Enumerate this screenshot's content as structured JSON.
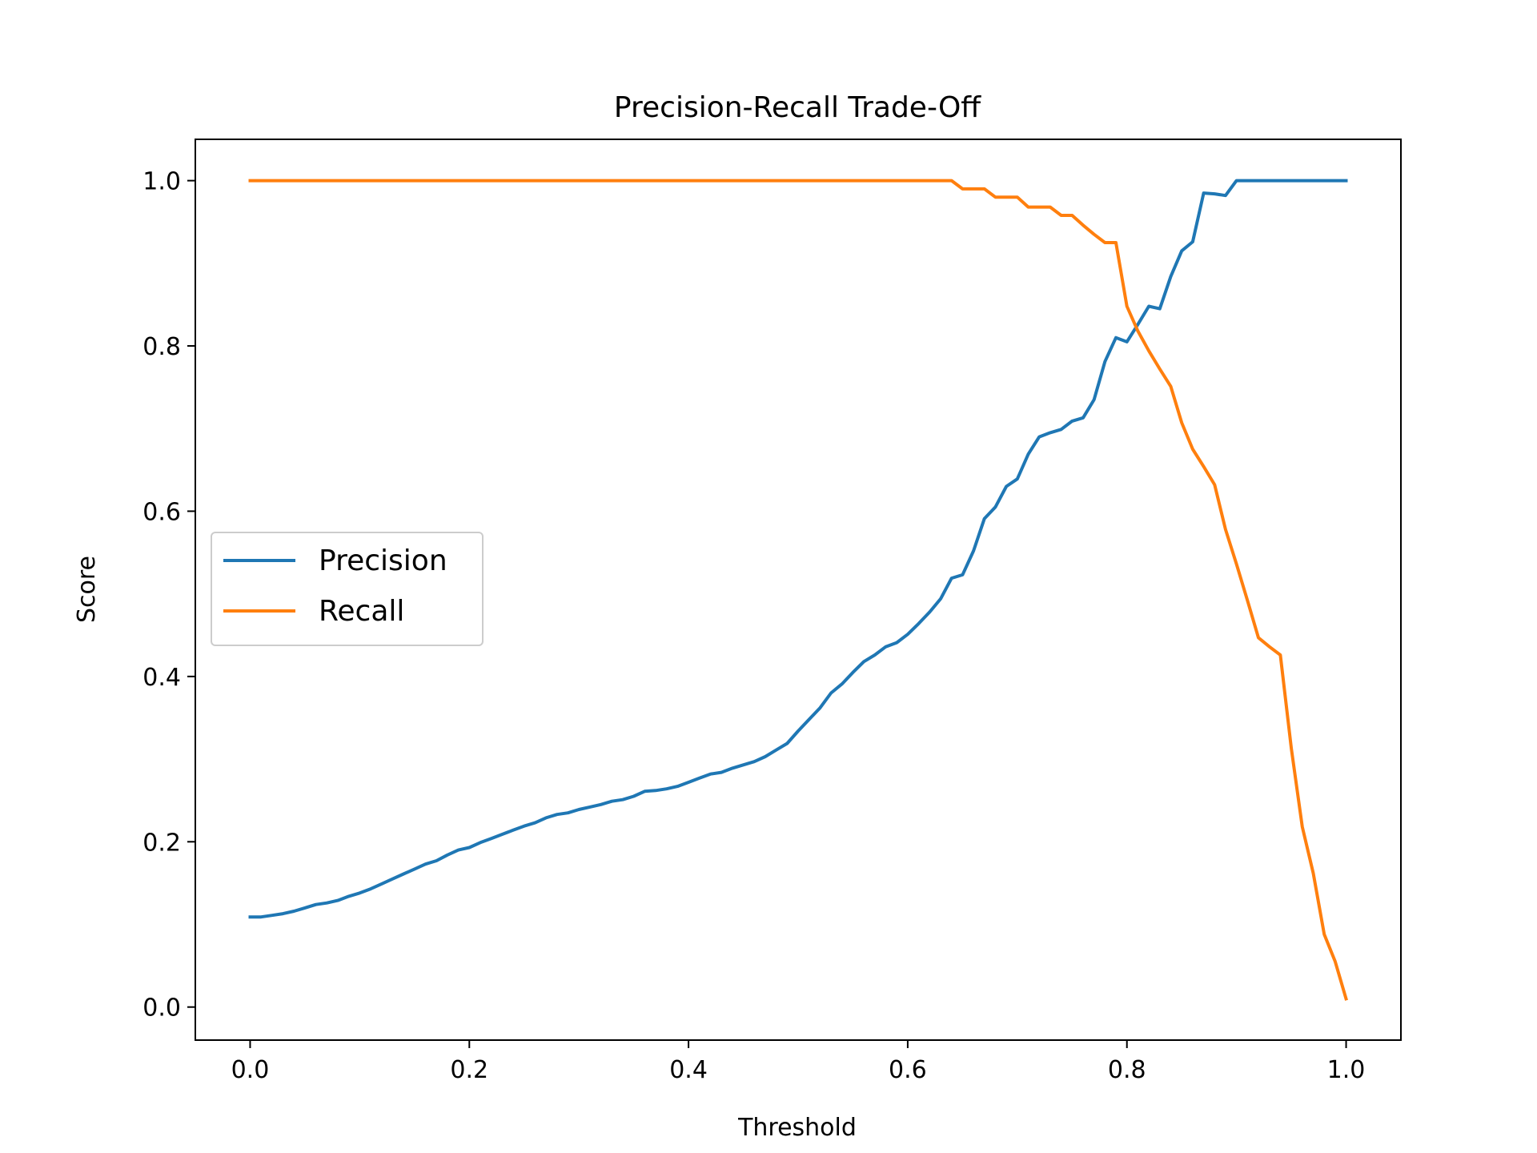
{
  "chart_data": {
    "type": "line",
    "title": "Precision-Recall Trade-Off",
    "xlabel": "Threshold",
    "ylabel": "Score",
    "xlim": [
      -0.05,
      1.05
    ],
    "ylim": [
      -0.04,
      1.05
    ],
    "xticks": [
      0.0,
      0.2,
      0.4,
      0.6,
      0.8,
      1.0
    ],
    "xtick_labels": [
      "0.0",
      "0.2",
      "0.4",
      "0.6",
      "0.8",
      "1.0"
    ],
    "yticks": [
      0.0,
      0.2,
      0.4,
      0.6,
      0.8,
      1.0
    ],
    "ytick_labels": [
      "0.0",
      "0.2",
      "0.4",
      "0.6",
      "0.8",
      "1.0"
    ],
    "grid": false,
    "legend_position": "center-left",
    "x": [
      0.0,
      0.01,
      0.02,
      0.03,
      0.04,
      0.05,
      0.06,
      0.07,
      0.08,
      0.09,
      0.1,
      0.11,
      0.12,
      0.13,
      0.14,
      0.15,
      0.16,
      0.17,
      0.18,
      0.19,
      0.2,
      0.21,
      0.22,
      0.23,
      0.24,
      0.25,
      0.26,
      0.27,
      0.28,
      0.29,
      0.3,
      0.31,
      0.32,
      0.33,
      0.34,
      0.35,
      0.36,
      0.37,
      0.38,
      0.39,
      0.4,
      0.41,
      0.42,
      0.43,
      0.44,
      0.45,
      0.46,
      0.47,
      0.48,
      0.49,
      0.5,
      0.51,
      0.52,
      0.53,
      0.54,
      0.55,
      0.56,
      0.57,
      0.58,
      0.59,
      0.6,
      0.61,
      0.62,
      0.63,
      0.64,
      0.65,
      0.66,
      0.67,
      0.68,
      0.69,
      0.7,
      0.71,
      0.72,
      0.73,
      0.74,
      0.75,
      0.76,
      0.77,
      0.78,
      0.79,
      0.8,
      0.81,
      0.82,
      0.83,
      0.84,
      0.85,
      0.86,
      0.87,
      0.88,
      0.89,
      0.9,
      0.91,
      0.92,
      0.93,
      0.94,
      0.95,
      0.96,
      0.97,
      0.98,
      0.99,
      1.0
    ],
    "series": [
      {
        "name": "Precision",
        "color": "#1f77b4",
        "values": [
          0.109,
          0.109,
          0.111,
          0.113,
          0.116,
          0.12,
          0.124,
          0.126,
          0.129,
          0.134,
          0.138,
          0.143,
          0.149,
          0.155,
          0.161,
          0.167,
          0.173,
          0.177,
          0.184,
          0.19,
          0.193,
          0.199,
          0.204,
          0.209,
          0.214,
          0.219,
          0.223,
          0.229,
          0.233,
          0.235,
          0.239,
          0.242,
          0.245,
          0.249,
          0.251,
          0.255,
          0.261,
          0.262,
          0.264,
          0.267,
          0.272,
          0.277,
          0.282,
          0.284,
          0.289,
          0.293,
          0.297,
          0.303,
          0.311,
          0.319,
          0.334,
          0.348,
          0.362,
          0.38,
          0.391,
          0.405,
          0.418,
          0.426,
          0.436,
          0.441,
          0.451,
          0.464,
          0.478,
          0.494,
          0.519,
          0.523,
          0.552,
          0.591,
          0.605,
          0.63,
          0.639,
          0.669,
          0.69,
          0.695,
          0.699,
          0.709,
          0.713,
          0.735,
          0.781,
          0.81,
          0.805,
          0.826,
          0.848,
          0.845,
          0.884,
          0.915,
          0.926,
          0.985,
          0.984,
          0.982,
          1.0,
          1.0,
          1.0,
          1.0,
          1.0,
          1.0,
          1.0,
          1.0,
          1.0,
          1.0,
          1.0
        ]
      },
      {
        "name": "Recall",
        "color": "#ff7f0e",
        "values": [
          1.0,
          1.0,
          1.0,
          1.0,
          1.0,
          1.0,
          1.0,
          1.0,
          1.0,
          1.0,
          1.0,
          1.0,
          1.0,
          1.0,
          1.0,
          1.0,
          1.0,
          1.0,
          1.0,
          1.0,
          1.0,
          1.0,
          1.0,
          1.0,
          1.0,
          1.0,
          1.0,
          1.0,
          1.0,
          1.0,
          1.0,
          1.0,
          1.0,
          1.0,
          1.0,
          1.0,
          1.0,
          1.0,
          1.0,
          1.0,
          1.0,
          1.0,
          1.0,
          1.0,
          1.0,
          1.0,
          1.0,
          1.0,
          1.0,
          1.0,
          1.0,
          1.0,
          1.0,
          1.0,
          1.0,
          1.0,
          1.0,
          1.0,
          1.0,
          1.0,
          1.0,
          1.0,
          1.0,
          1.0,
          1.0,
          0.99,
          0.99,
          0.99,
          0.98,
          0.98,
          0.98,
          0.968,
          0.968,
          0.968,
          0.958,
          0.958,
          0.946,
          0.935,
          0.925,
          0.925,
          0.848,
          0.818,
          0.794,
          0.772,
          0.751,
          0.707,
          0.675,
          0.654,
          0.632,
          0.578,
          0.536,
          0.492,
          0.447,
          0.436,
          0.426,
          0.313,
          0.218,
          0.162,
          0.088,
          0.055,
          0.01
        ]
      }
    ]
  }
}
